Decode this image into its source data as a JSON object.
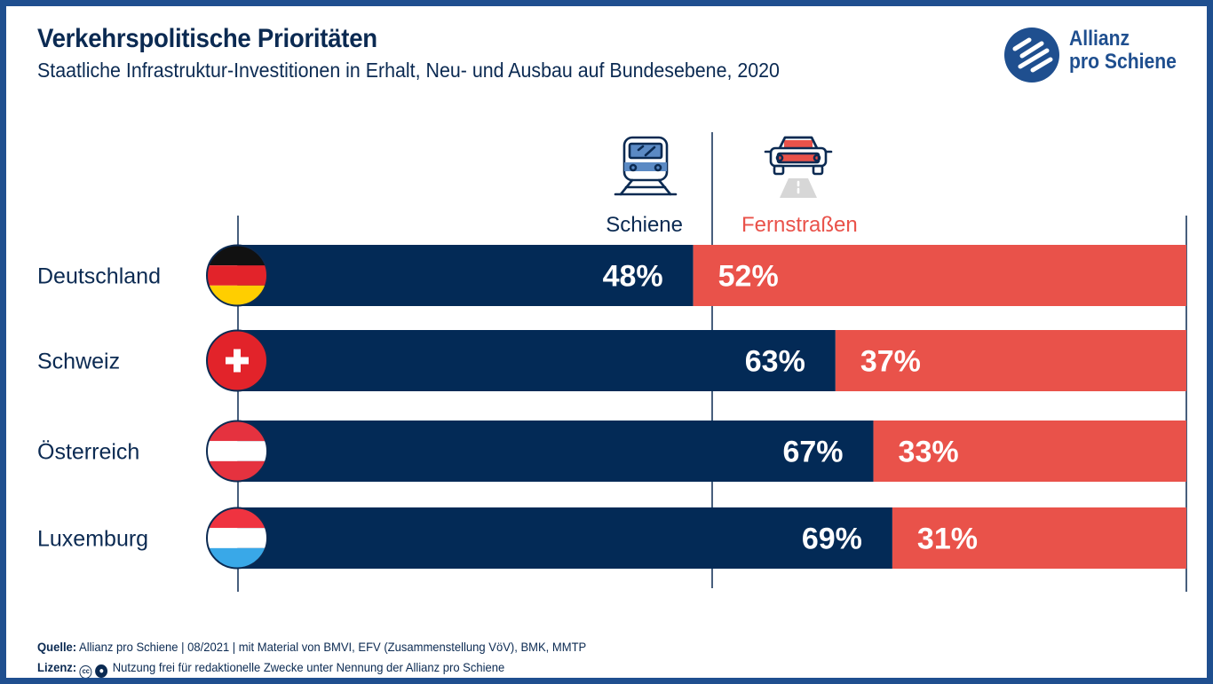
{
  "header": {
    "title": "Verkehrspolitische Prioritäten",
    "subtitle": "Staatliche Infrastruktur-Investitionen in Erhalt, Neu- und Ausbau auf Bundesebene, 2020"
  },
  "logo": {
    "line1": "Allianz",
    "line2": "pro Schiene"
  },
  "colors": {
    "rail": "#032a56",
    "road": "#e9524a",
    "text": "#0b2a52",
    "brand": "#1f4f8f"
  },
  "chart_data": {
    "type": "bar",
    "stacked": true,
    "orientation": "horizontal",
    "title": "Verkehrspolitische Prioritäten",
    "subtitle": "Staatliche Infrastruktur-Investitionen in Erhalt, Neu- und Ausbau auf Bundesebene, 2020",
    "categories": [
      "Deutschland",
      "Schweiz",
      "Österreich",
      "Luxemburg"
    ],
    "series": [
      {
        "name": "Schiene",
        "values": [
          48,
          63,
          67,
          69
        ],
        "labels": [
          "48%",
          "63%",
          "67%",
          "69%"
        ],
        "color": "#032a56",
        "icon": "train-icon"
      },
      {
        "name": "Fernstraßen",
        "values": [
          52,
          37,
          33,
          31
        ],
        "labels": [
          "52%",
          "37%",
          "33%",
          "31%"
        ],
        "color": "#e9524a",
        "icon": "car-icon"
      }
    ],
    "xlim": [
      0,
      100
    ],
    "legend": "top-center",
    "flags": [
      "germany-flag-icon",
      "switzerland-flag-icon",
      "austria-flag-icon",
      "luxembourg-flag-icon"
    ]
  },
  "footer": {
    "source_label": "Quelle:",
    "source_text": "Allianz pro Schiene | 08/2021 | mit Material von BMVI, EFV (Zusammenstellung VöV), BMK, MMTP",
    "license_label": "Lizenz:",
    "license_text": "Nutzung frei für redaktionelle Zwecke unter Nennung der Allianz pro Schiene"
  }
}
